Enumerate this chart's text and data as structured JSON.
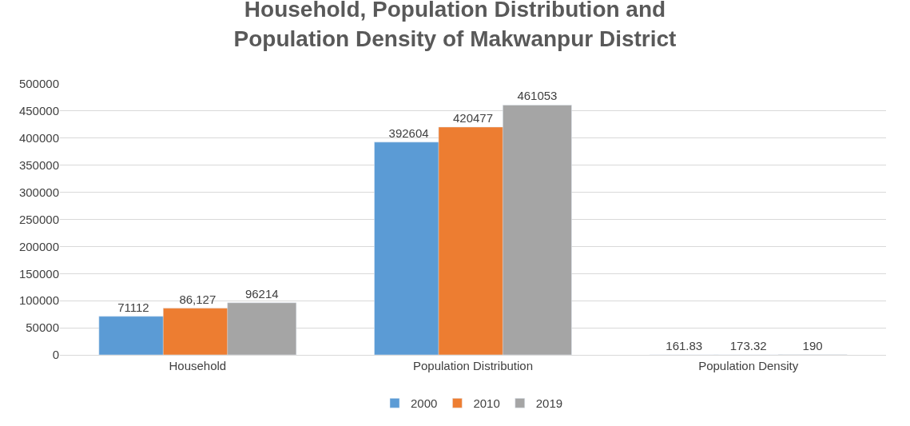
{
  "chart_data": {
    "type": "bar",
    "title": "Household, Population Distribution and Population Density of Makwanpur District",
    "categories": [
      "Household",
      "Population Distribution",
      "Population Density"
    ],
    "series": [
      {
        "name": "2000",
        "color": "#5b9bd5",
        "values": [
          71112,
          392604,
          161.83
        ],
        "value_labels": [
          "71112",
          "392604",
          "161.83"
        ]
      },
      {
        "name": "2010",
        "color": "#ed7d31",
        "values": [
          86127,
          420477,
          173.32
        ],
        "value_labels": [
          "86,127",
          "420477",
          "173.32"
        ]
      },
      {
        "name": "2019",
        "color": "#a5a5a5",
        "values": [
          96214,
          461053,
          190
        ],
        "value_labels": [
          "96214",
          "461053",
          "190"
        ]
      }
    ],
    "ylim": [
      0,
      500000
    ],
    "yticks": [
      0,
      50000,
      100000,
      150000,
      200000,
      250000,
      300000,
      350000,
      400000,
      450000,
      500000
    ],
    "grid": "y",
    "legend": "bottom"
  }
}
